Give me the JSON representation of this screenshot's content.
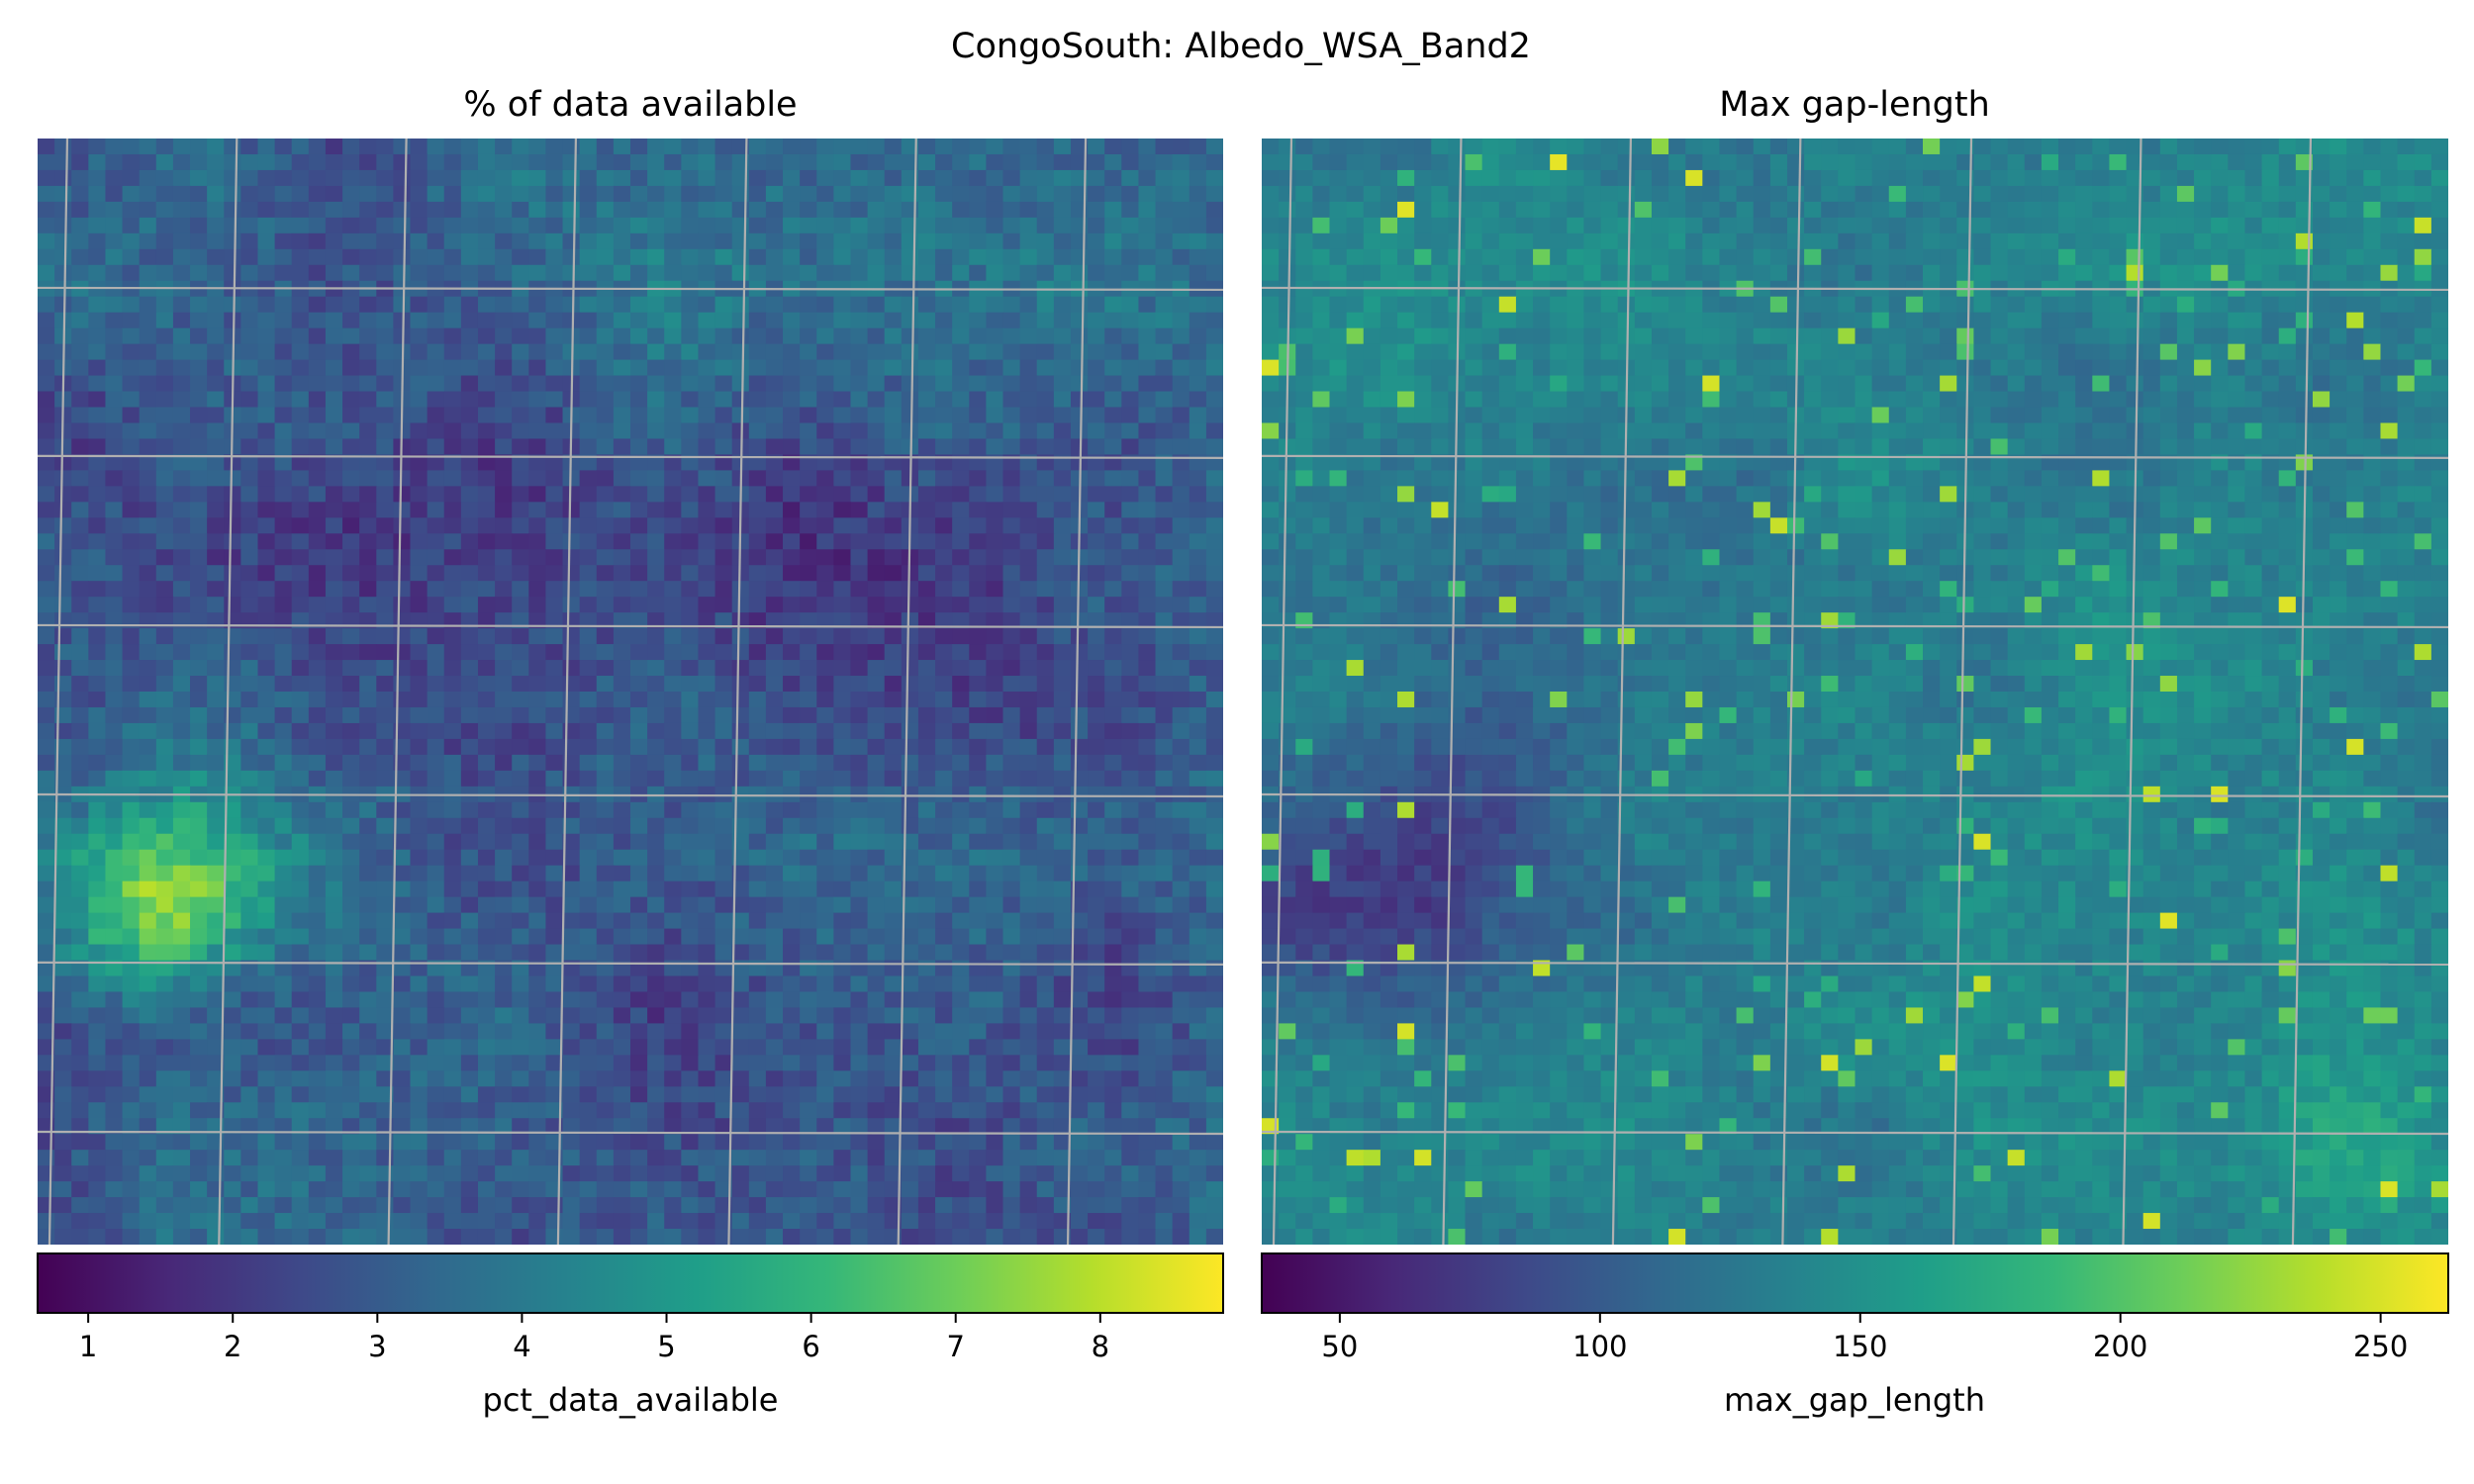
{
  "figure": {
    "suptitle": "CongoSouth: Albedo_WSA_Band2"
  },
  "colormap": {
    "name": "viridis",
    "stops": [
      "#440154",
      "#482878",
      "#3e4989",
      "#31688e",
      "#26828e",
      "#1f9e89",
      "#35b779",
      "#6ece58",
      "#b5de2b",
      "#fde725"
    ]
  },
  "chart_data": [
    {
      "type": "heatmap",
      "title": "% of data available",
      "colorbar_label": "pct_data_available",
      "colorbar_ticks": [
        "1",
        "2",
        "3",
        "4",
        "5",
        "6",
        "7",
        "8"
      ],
      "vmin": 0.65,
      "vmax": 8.85,
      "grid": true,
      "grid_description": "projected lat/lon graticule lines",
      "description": "mostly low values (2-4%), with a bright cluster of high values (6-8.5%) in the lower-left region"
    },
    {
      "type": "heatmap",
      "title": "Max gap-length",
      "colorbar_label": "max_gap_length",
      "colorbar_ticks": [
        "50",
        "100",
        "150",
        "200",
        "250"
      ],
      "vmin": 35,
      "vmax": 263,
      "grid": true,
      "grid_description": "projected lat/lon graticule lines",
      "description": "mostly 120-160, low values (60-90) in the left-center, scattered high values (190-260) in the center and lower-right"
    }
  ]
}
